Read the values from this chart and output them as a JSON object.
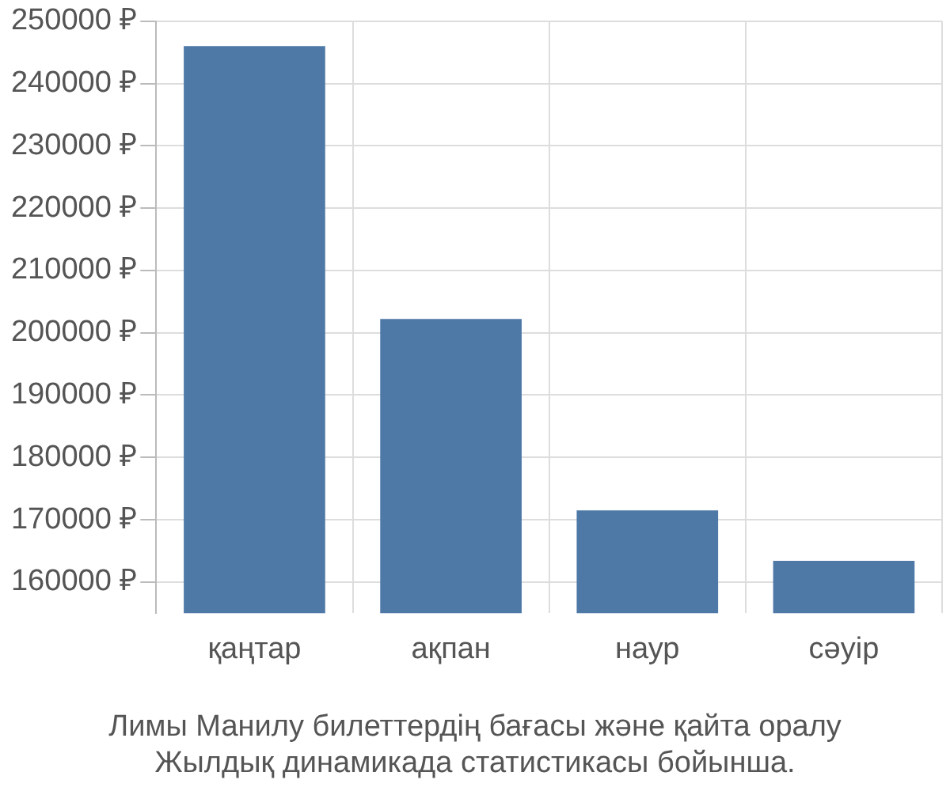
{
  "chart_data": {
    "type": "bar",
    "title": "Лимы Манилу билеттердің бағасы және қайта оралу",
    "subtitle": "Жылдық динамикада статистикасы бойынша.",
    "categories": [
      "қаңтар",
      "ақпан",
      "наур",
      "сәуір"
    ],
    "values": [
      246000,
      202200,
      171500,
      163400
    ],
    "color": "#4e79a7",
    "ylim": [
      155000,
      250000
    ],
    "yticks": [
      {
        "value": 160000,
        "label": "160000 ₽"
      },
      {
        "value": 170000,
        "label": "170000 ₽"
      },
      {
        "value": 180000,
        "label": "180000 ₽"
      },
      {
        "value": 190000,
        "label": "190000 ₽"
      },
      {
        "value": 200000,
        "label": "200000 ₽"
      },
      {
        "value": 210000,
        "label": "210000 ₽"
      },
      {
        "value": 220000,
        "label": "220000 ₽"
      },
      {
        "value": 230000,
        "label": "230000 ₽"
      },
      {
        "value": 240000,
        "label": "240000 ₽"
      },
      {
        "value": 250000,
        "label": "250000 ₽"
      }
    ],
    "grid": true
  }
}
